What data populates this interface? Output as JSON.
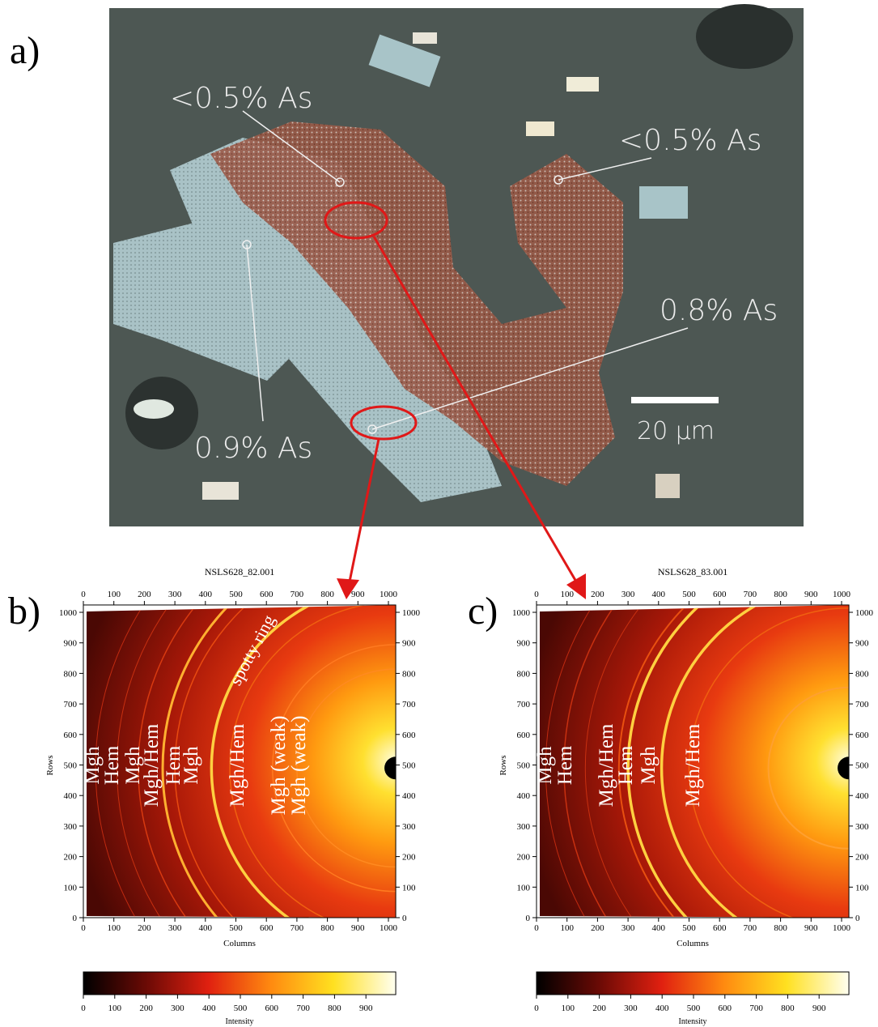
{
  "panel_a": {
    "label": "a)",
    "annotations": [
      "<0.5% As",
      "<0.5% As",
      "0.8% As",
      "0.9% As"
    ],
    "scale_bar": "20 µm"
  },
  "panel_b": {
    "label": "b)",
    "title": "NSLS628_82.001",
    "x_label": "Columns",
    "y_label": "Rows",
    "ticks": [
      0,
      100,
      200,
      300,
      400,
      500,
      600,
      700,
      800,
      900,
      1000
    ],
    "ring_labels": [
      "Mgh",
      "Hem",
      "Mgh",
      "Mgh/Hem",
      "Hem",
      "Mgh",
      "Mgh/Hem",
      "Mgh (weak)",
      "Mgh (weak)"
    ],
    "note": "spotty ring",
    "colorbar_ticks": [
      0,
      100,
      200,
      300,
      400,
      500,
      600,
      700,
      800,
      900
    ],
    "colorbar_label": "Intensity"
  },
  "panel_c": {
    "label": "c)",
    "title": "NSLS628_83.001",
    "x_label": "Columns",
    "y_label": "Rows",
    "ticks": [
      0,
      100,
      200,
      300,
      400,
      500,
      600,
      700,
      800,
      900,
      1000
    ],
    "ring_labels": [
      "Mgh",
      "Hem",
      "Mgh/Hem",
      "Hem",
      "Mgh",
      "Mgh/Hem"
    ],
    "colorbar_ticks": [
      0,
      100,
      200,
      300,
      400,
      500,
      600,
      700,
      800,
      900
    ],
    "colorbar_label": "Intensity"
  }
}
